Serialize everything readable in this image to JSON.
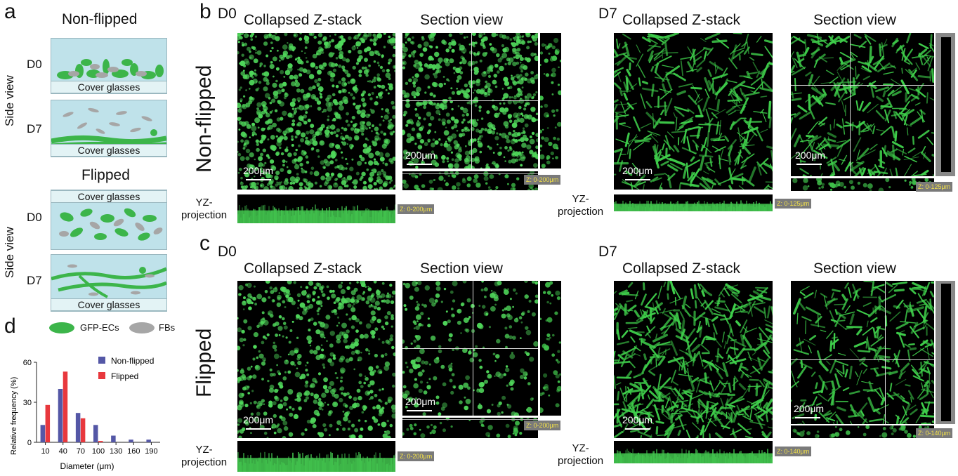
{
  "panels": {
    "a": "a",
    "b": "b",
    "c": "c",
    "d": "d"
  },
  "panel_a": {
    "nonflipped_title": "Non-flipped",
    "flipped_title": "Flipped",
    "side_view": "Side view",
    "d0": "D0",
    "d7": "D7",
    "cover_glasses": "Cover glasses",
    "legend": {
      "ecs": "GFP-ECs",
      "fbs": "FBs"
    },
    "colors": {
      "ecs": "#3cb54a",
      "fbs": "#a6a6a6",
      "medium": "#bfe2ea"
    }
  },
  "panel_b": {
    "row_label": "Non-flipped",
    "d0": "D0",
    "d7": "D7",
    "collapsed": "Collapsed Z-stack",
    "section": "Section view",
    "scale": "200μm",
    "yz": "YZ-",
    "projection": "projection",
    "z_d0": "Z: 0-200μm",
    "z_d7": "Z: 0-125μm"
  },
  "panel_c": {
    "row_label": "Flipped",
    "d0": "D0",
    "d7": "D7",
    "collapsed": "Collapsed Z-stack",
    "section": "Section view",
    "scale": "200μm",
    "yz": "YZ-",
    "projection": "projection",
    "z_d0": "Z: 0-200μm",
    "z_d7": "Z: 0-140μm"
  },
  "chart_data": {
    "type": "bar",
    "xlabel": "Diameter (μm)",
    "ylabel": "Relative frequency (%)",
    "categories": [
      "10",
      "40",
      "70",
      "100",
      "130",
      "160",
      "190"
    ],
    "ylim": [
      0,
      60
    ],
    "yticks": [
      0,
      30,
      60
    ],
    "legend_position": "top-right",
    "series": [
      {
        "name": "Non-flipped",
        "color": "#5457a6",
        "values": [
          13,
          40,
          22,
          13,
          5,
          2,
          2
        ]
      },
      {
        "name": "Flipped",
        "color": "#e8383d",
        "values": [
          28,
          53,
          18,
          1,
          0,
          0,
          0
        ]
      }
    ]
  }
}
